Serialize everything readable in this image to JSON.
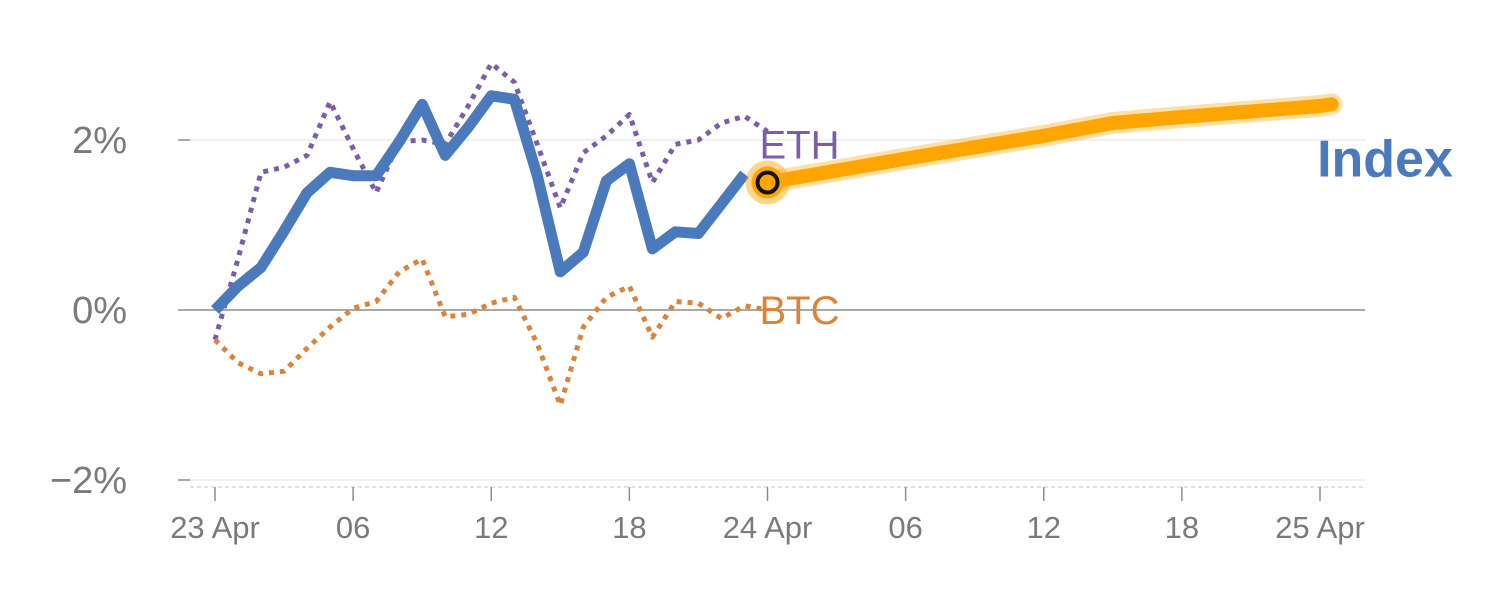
{
  "chart_data": {
    "type": "line",
    "title": "",
    "xlabel": "",
    "ylabel": "",
    "y_unit": "%",
    "ylim": [
      -2.0,
      3.0
    ],
    "xlim": [
      "23 Apr 00:00",
      "25 Apr 01:00"
    ],
    "grid": "horizontal",
    "legend": "direct labels at line ends",
    "y_ticks": [
      {
        "value": 2,
        "label": "2%"
      },
      {
        "value": 0,
        "label": "0%"
      },
      {
        "value": -2,
        "label": "−2%"
      }
    ],
    "x_ticks": [
      {
        "x": "23 Apr 00:00",
        "label": "23 Apr"
      },
      {
        "x": "23 Apr 06:00",
        "label": "06"
      },
      {
        "x": "23 Apr 12:00",
        "label": "12"
      },
      {
        "x": "23 Apr 18:00",
        "label": "18"
      },
      {
        "x": "24 Apr 00:00",
        "label": "24 Apr"
      },
      {
        "x": "24 Apr 06:00",
        "label": "06"
      },
      {
        "x": "24 Apr 12:00",
        "label": "12"
      },
      {
        "x": "24 Apr 18:00",
        "label": "18"
      },
      {
        "x": "25 Apr 00:00",
        "label": "25 Apr"
      }
    ],
    "series": [
      {
        "name": "ETH",
        "color": "#7b5ea7",
        "style": "dotted",
        "x": [
          "23 Apr 00:00",
          "23 Apr 01:00",
          "23 Apr 02:00",
          "23 Apr 03:00",
          "23 Apr 04:00",
          "23 Apr 05:00",
          "23 Apr 06:00",
          "23 Apr 07:00",
          "23 Apr 08:00",
          "23 Apr 09:00",
          "23 Apr 10:00",
          "23 Apr 11:00",
          "23 Apr 12:00",
          "23 Apr 13:00",
          "23 Apr 14:00",
          "23 Apr 15:00",
          "23 Apr 16:00",
          "23 Apr 17:00",
          "23 Apr 18:00",
          "23 Apr 19:00",
          "23 Apr 20:00",
          "23 Apr 21:00",
          "23 Apr 22:00",
          "23 Apr 23:00",
          "24 Apr 00:00"
        ],
        "values": [
          -0.35,
          0.6,
          1.62,
          1.68,
          1.82,
          2.45,
          1.9,
          1.38,
          1.98,
          2.0,
          1.95,
          2.4,
          2.9,
          2.68,
          1.95,
          1.2,
          1.85,
          2.05,
          2.3,
          1.5,
          1.95,
          2.0,
          2.2,
          2.28,
          2.1
        ]
      },
      {
        "name": "BTC",
        "color": "#d9843a",
        "style": "dotted",
        "x": [
          "23 Apr 00:00",
          "23 Apr 01:00",
          "23 Apr 02:00",
          "23 Apr 03:00",
          "23 Apr 04:00",
          "23 Apr 05:00",
          "23 Apr 06:00",
          "23 Apr 07:00",
          "23 Apr 08:00",
          "23 Apr 09:00",
          "23 Apr 10:00",
          "23 Apr 11:00",
          "23 Apr 12:00",
          "23 Apr 13:00",
          "23 Apr 14:00",
          "23 Apr 15:00",
          "23 Apr 16:00",
          "23 Apr 17:00",
          "23 Apr 18:00",
          "23 Apr 19:00",
          "23 Apr 20:00",
          "23 Apr 21:00",
          "23 Apr 22:00",
          "23 Apr 23:00",
          "24 Apr 00:00"
        ],
        "values": [
          -0.35,
          -0.62,
          -0.75,
          -0.72,
          -0.45,
          -0.2,
          0.02,
          0.1,
          0.45,
          0.6,
          -0.08,
          -0.05,
          0.08,
          0.15,
          -0.4,
          -1.12,
          -0.2,
          0.15,
          0.28,
          -0.32,
          0.1,
          0.08,
          -0.1,
          0.05,
          0.0
        ]
      },
      {
        "name": "Index",
        "color": "#4a7abb",
        "style": "solid",
        "x": [
          "23 Apr 00:00",
          "23 Apr 01:00",
          "23 Apr 02:00",
          "23 Apr 03:00",
          "23 Apr 04:00",
          "23 Apr 05:00",
          "23 Apr 06:00",
          "23 Apr 07:00",
          "23 Apr 08:00",
          "23 Apr 09:00",
          "23 Apr 10:00",
          "23 Apr 11:00",
          "23 Apr 12:00",
          "23 Apr 13:00",
          "23 Apr 14:00",
          "23 Apr 15:00",
          "23 Apr 16:00",
          "23 Apr 17:00",
          "23 Apr 18:00",
          "23 Apr 19:00",
          "23 Apr 20:00",
          "23 Apr 21:00",
          "23 Apr 22:00",
          "23 Apr 23:00"
        ],
        "values": [
          0.0,
          0.28,
          0.5,
          0.93,
          1.38,
          1.62,
          1.58,
          1.58,
          1.98,
          2.42,
          1.82,
          2.15,
          2.52,
          2.48,
          1.58,
          0.45,
          0.68,
          1.52,
          1.72,
          0.72,
          0.92,
          0.9,
          1.25,
          1.6
        ]
      },
      {
        "name": "",
        "color": "#ffa500",
        "style": "projection",
        "x": [
          "24 Apr 00:00",
          "24 Apr 06:00",
          "24 Apr 12:00",
          "24 Apr 15:00",
          "24 Apr 18:00",
          "25 Apr 00:00",
          "25 Apr 00:30"
        ],
        "values": [
          1.5,
          1.78,
          2.05,
          2.2,
          2.27,
          2.4,
          2.42
        ]
      }
    ],
    "marker": {
      "x": "24 Apr 00:00",
      "value": 1.5,
      "fill": "#ffa500"
    },
    "labels": [
      {
        "text": "ETH",
        "series": "ETH",
        "x": "24 Apr 00:00",
        "value": 1.95
      },
      {
        "text": "BTC",
        "series": "BTC",
        "x": "24 Apr 00:00",
        "value": 0.0
      },
      {
        "text": "Index",
        "series": "Index",
        "x": "25 Apr 00:00",
        "value": 1.78
      }
    ]
  }
}
